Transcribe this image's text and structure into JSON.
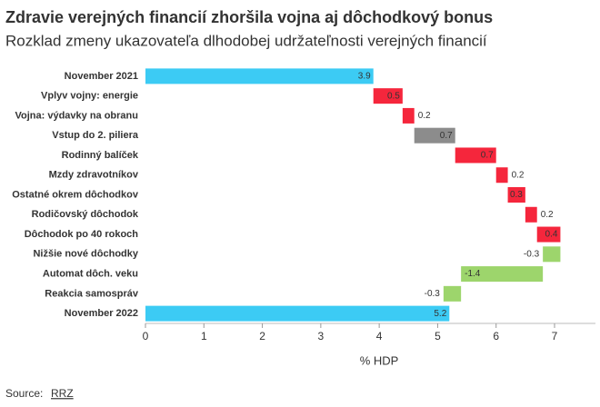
{
  "chart_data": {
    "type": "waterfall",
    "title": "Zdravie verejných financií zhoršila vojna aj dôchodkový bonus",
    "subtitle": "Rozklad zmeny ukazovateľa dlhodobej udržateľnosti verejných financií",
    "categories": [
      "November 2021",
      "Vplyv vojny: energie",
      "Vojna: výdavky na obranu",
      "Vstup do 2. piliera",
      "Rodinný balíček",
      "Mzdy zdravotníkov",
      "Ostatné okrem dôchodkov",
      "Rodičovský dôchodok",
      "Dôchodok po 40 rokoch",
      "Nižšie nové dôchodky",
      "Automat dôch. veku",
      "Reakcia samospráv",
      "November 2022"
    ],
    "values": [
      3.9,
      0.5,
      0.2,
      0.7,
      0.7,
      0.2,
      0.3,
      0.2,
      0.4,
      -0.3,
      -1.4,
      -0.3,
      5.2
    ],
    "totals": [
      true,
      false,
      false,
      false,
      false,
      false,
      false,
      false,
      false,
      false,
      false,
      false,
      true
    ],
    "colors": [
      "#3ccbf4",
      "#f5263c",
      "#f5263c",
      "#8c8c8c",
      "#f5263c",
      "#f5263c",
      "#f5263c",
      "#f5263c",
      "#f5263c",
      "#9dd56c",
      "#9dd56c",
      "#9dd56c",
      "#3ccbf4"
    ],
    "xlabel": "% HDP",
    "xlim": [
      0,
      7.7
    ],
    "xticks": [
      0,
      1,
      2,
      3,
      4,
      5,
      6,
      7
    ],
    "source_label": "Source:",
    "source": "RRZ"
  }
}
